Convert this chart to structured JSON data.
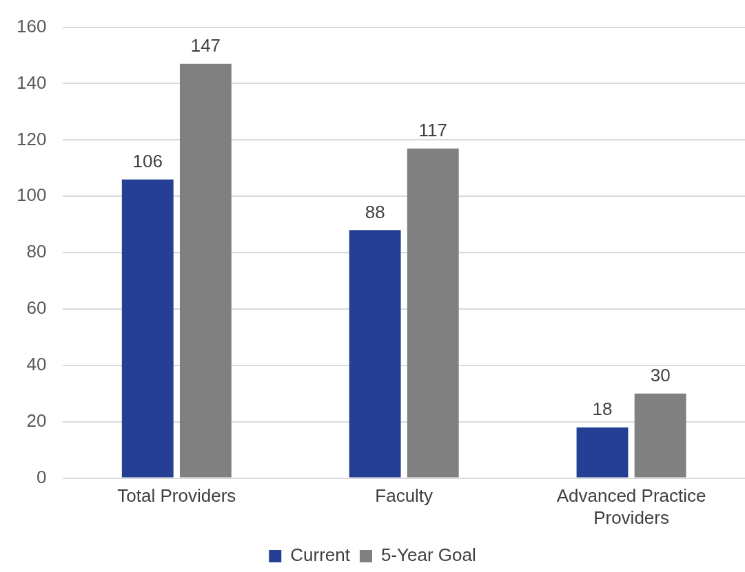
{
  "chart_data": {
    "type": "bar",
    "categories": [
      "Total Providers",
      "Faculty",
      "Advanced Practice Providers"
    ],
    "series": [
      {
        "name": "Current",
        "color": "#253f94",
        "values": [
          106,
          88,
          18
        ]
      },
      {
        "name": "5-Year Goal",
        "color": "#808080",
        "values": [
          147,
          117,
          30
        ]
      }
    ],
    "ylim": [
      0,
      160
    ],
    "yticks": [
      0,
      20,
      40,
      60,
      80,
      100,
      120,
      140,
      160
    ],
    "grid": "y",
    "legend": "bottom",
    "data_labels": true
  }
}
